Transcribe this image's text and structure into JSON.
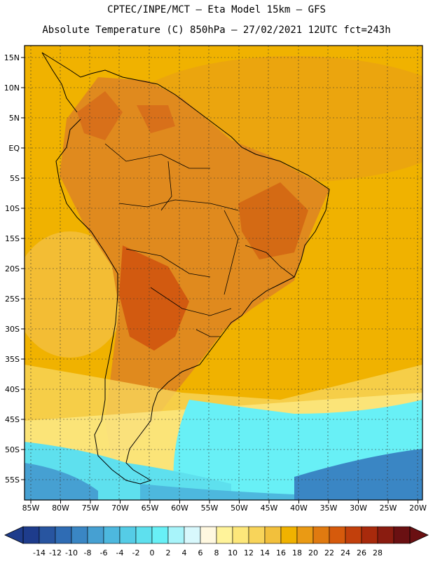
{
  "header": {
    "line1": "CPTEC/INPE/MCT –  Eta Model 15km – GFS",
    "line2": "Absolute Temperature (C) 850hPa – 27/02/2021 12UTC fct=243h"
  },
  "map": {
    "lat_labels": [
      "15N",
      "10N",
      "5N",
      "EQ",
      "5S",
      "10S",
      "15S",
      "20S",
      "25S",
      "30S",
      "35S",
      "40S",
      "45S",
      "50S",
      "55S"
    ],
    "lon_labels": [
      "85W",
      "80W",
      "75W",
      "70W",
      "65W",
      "60W",
      "55W",
      "50W",
      "45W",
      "40W",
      "35W",
      "30W",
      "25W",
      "20W"
    ],
    "base_color": "#f0b200",
    "land_warm_color": "#e08a1e",
    "hot_core_color": "#d25a10",
    "cold_ocean_color": "#5fd8ee",
    "deep_cold_color": "#2a74b0"
  },
  "colorbar": {
    "labels": [
      "-14",
      "-12",
      "-10",
      "-8",
      "-6",
      "-4",
      "-2",
      "0",
      "2",
      "4",
      "6",
      "8",
      "10",
      "12",
      "14",
      "16",
      "18",
      "20",
      "22",
      "24",
      "26",
      "28"
    ],
    "colors": [
      "#1e3c8c",
      "#2855a0",
      "#2f6cb4",
      "#3a86c4",
      "#46a0d2",
      "#4db8de",
      "#55cce6",
      "#5ee0ee",
      "#68f0f6",
      "#a8f4fa",
      "#d8f8fc",
      "#fff8e0",
      "#fff39a",
      "#fde77a",
      "#f8d45a",
      "#f2c03c",
      "#f0b200",
      "#ea9a14",
      "#e07a10",
      "#d65a0c",
      "#c2400c",
      "#a82a0c",
      "#8a1c10",
      "#6a1012"
    ]
  }
}
